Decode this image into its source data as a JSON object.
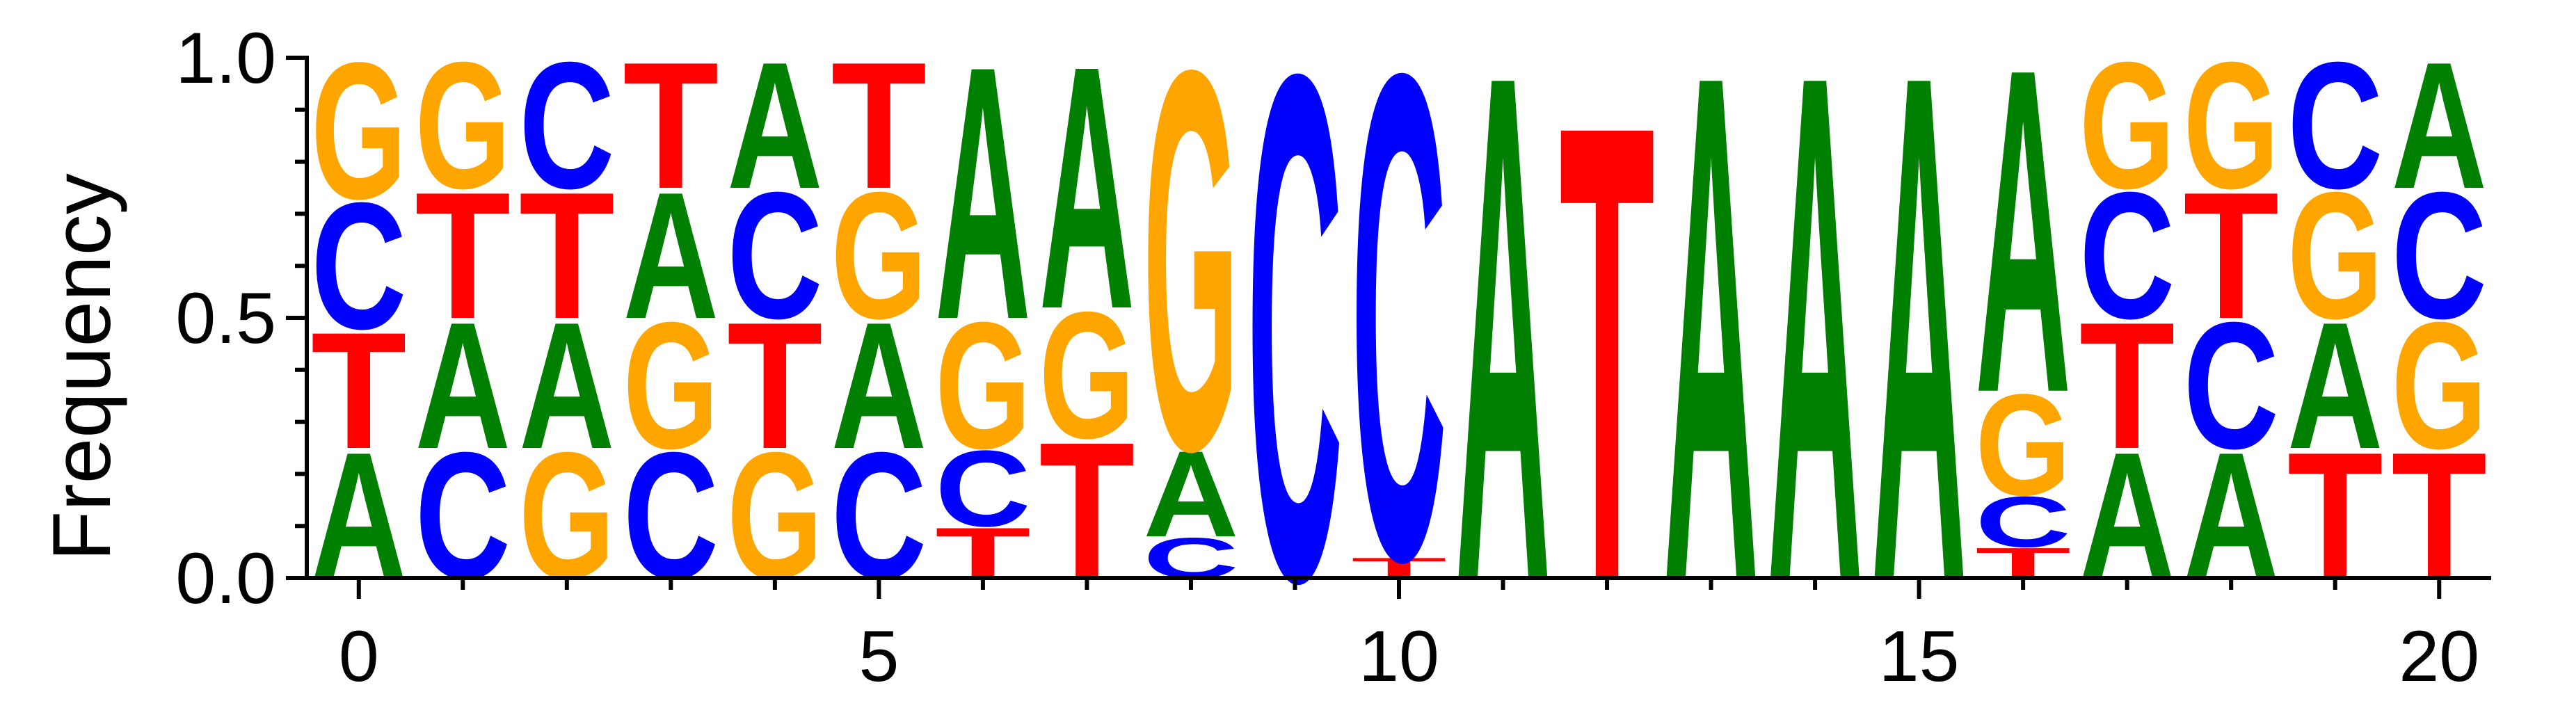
{
  "chart_data": {
    "type": "sequence-logo",
    "ylabel": "Frequency",
    "xlabel": "",
    "title": "",
    "xlim": [
      -0.5,
      20.5
    ],
    "ylim": [
      0,
      1
    ],
    "xticks": [
      0,
      5,
      10,
      15,
      20
    ],
    "xticks_minor": [
      1,
      2,
      3,
      4,
      6,
      7,
      8,
      9,
      11,
      12,
      13,
      14,
      16,
      17,
      18,
      19
    ],
    "yticks": [
      0.0,
      0.5,
      1.0
    ],
    "ytick_labels": [
      "0.0",
      "0.5",
      "1.0"
    ],
    "yticks_minor": [
      0.1,
      0.2,
      0.3,
      0.4,
      0.6,
      0.7,
      0.8,
      0.9
    ],
    "colors": {
      "A": "#008000",
      "C": "#0000ff",
      "G": "#ffa500",
      "T": "#ff0000"
    },
    "positions": [
      {
        "x": 0,
        "stack": [
          [
            "A",
            0.25
          ],
          [
            "T",
            0.23
          ],
          [
            "C",
            0.25
          ],
          [
            "G",
            0.27
          ]
        ]
      },
      {
        "x": 1,
        "stack": [
          [
            "C",
            0.25
          ],
          [
            "A",
            0.25
          ],
          [
            "T",
            0.25
          ],
          [
            "G",
            0.25
          ]
        ]
      },
      {
        "x": 2,
        "stack": [
          [
            "G",
            0.25
          ],
          [
            "A",
            0.25
          ],
          [
            "T",
            0.25
          ],
          [
            "C",
            0.25
          ]
        ]
      },
      {
        "x": 3,
        "stack": [
          [
            "C",
            0.25
          ],
          [
            "G",
            0.25
          ],
          [
            "A",
            0.25
          ],
          [
            "T",
            0.25
          ]
        ]
      },
      {
        "x": 4,
        "stack": [
          [
            "G",
            0.25
          ],
          [
            "T",
            0.25
          ],
          [
            "C",
            0.25
          ],
          [
            "A",
            0.25
          ]
        ]
      },
      {
        "x": 5,
        "stack": [
          [
            "C",
            0.25
          ],
          [
            "A",
            0.25
          ],
          [
            "G",
            0.25
          ],
          [
            "T",
            0.25
          ]
        ]
      },
      {
        "x": 6,
        "stack": [
          [
            "T",
            0.1
          ],
          [
            "C",
            0.15
          ],
          [
            "G",
            0.25
          ],
          [
            "A",
            0.5
          ]
        ]
      },
      {
        "x": 7,
        "stack": [
          [
            "T",
            0.27
          ],
          [
            "G",
            0.25
          ],
          [
            "A",
            0.48
          ]
        ]
      },
      {
        "x": 8,
        "stack": [
          [
            "C",
            0.08
          ],
          [
            "A",
            0.17
          ],
          [
            "G",
            0.75
          ]
        ]
      },
      {
        "x": 9,
        "stack": [
          [
            "C",
            1.0
          ]
        ]
      },
      {
        "x": 10,
        "stack": [
          [
            "T",
            0.04
          ],
          [
            "C",
            0.96
          ]
        ]
      },
      {
        "x": 11,
        "stack": [
          [
            "A",
            1.0
          ]
        ]
      },
      {
        "x": 12,
        "stack": [
          [
            "T",
            0.9
          ]
        ]
      },
      {
        "x": 13,
        "stack": [
          [
            "A",
            1.0
          ]
        ]
      },
      {
        "x": 14,
        "stack": [
          [
            "A",
            1.0
          ]
        ]
      },
      {
        "x": 15,
        "stack": [
          [
            "A",
            1.0
          ]
        ]
      },
      {
        "x": 16,
        "stack": [
          [
            "T",
            0.06
          ],
          [
            "C",
            0.1
          ],
          [
            "G",
            0.2
          ],
          [
            "A",
            0.64
          ]
        ]
      },
      {
        "x": 17,
        "stack": [
          [
            "A",
            0.25
          ],
          [
            "T",
            0.25
          ],
          [
            "C",
            0.25
          ],
          [
            "G",
            0.25
          ]
        ]
      },
      {
        "x": 18,
        "stack": [
          [
            "A",
            0.25
          ],
          [
            "C",
            0.25
          ],
          [
            "T",
            0.25
          ],
          [
            "G",
            0.25
          ]
        ]
      },
      {
        "x": 19,
        "stack": [
          [
            "T",
            0.25
          ],
          [
            "A",
            0.25
          ],
          [
            "G",
            0.25
          ],
          [
            "C",
            0.25
          ]
        ]
      },
      {
        "x": 20,
        "stack": [
          [
            "T",
            0.25
          ],
          [
            "G",
            0.25
          ],
          [
            "C",
            0.25
          ],
          [
            "A",
            0.25
          ]
        ]
      }
    ]
  }
}
